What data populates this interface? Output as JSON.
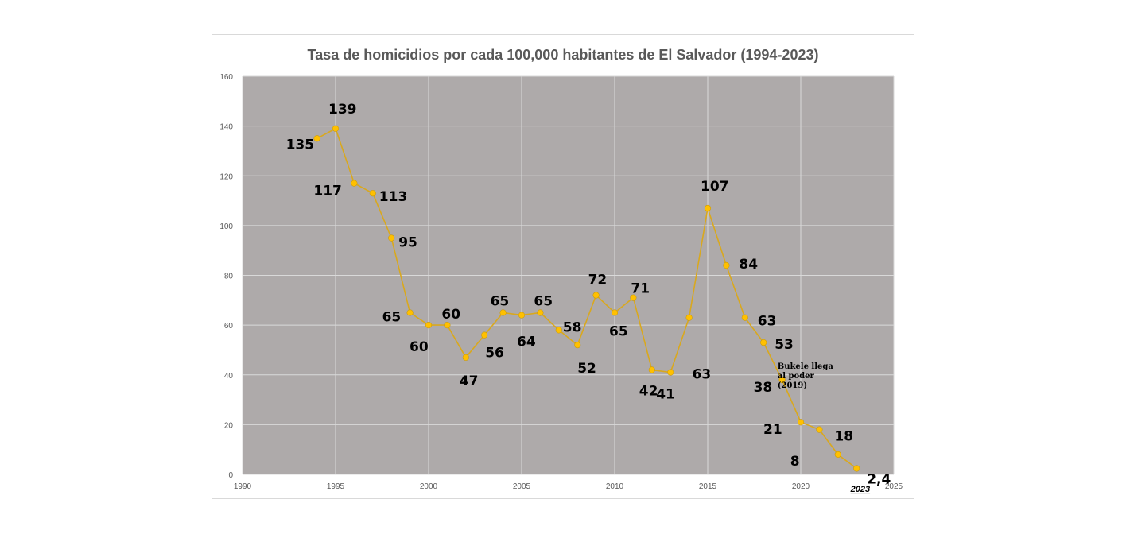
{
  "chart_data": {
    "type": "line",
    "title": "Tasa de homicidios  por cada 100,000 habitantes  de El Salvador  (1994-2023)",
    "xlabel": "",
    "ylabel": "",
    "xlim": [
      1990,
      2025
    ],
    "ylim": [
      0,
      160
    ],
    "x_ticks": [
      1990,
      1995,
      2000,
      2005,
      2010,
      2015,
      2020,
      2025
    ],
    "y_ticks": [
      0,
      20,
      40,
      60,
      80,
      100,
      120,
      140,
      160
    ],
    "grid": true,
    "colors": {
      "plot_background": "#aeaaaa",
      "gridline": "#d9d9d9",
      "line": "#d9a81e",
      "marker": "#ffc000"
    },
    "series": [
      {
        "x": [
          1994,
          1995,
          1996,
          1997,
          1998,
          1999,
          2000,
          2001,
          2002,
          2003,
          2004,
          2005,
          2006,
          2007,
          2008,
          2009,
          2010,
          2011,
          2012,
          2013,
          2014,
          2015,
          2016,
          2017,
          2018,
          2019,
          2020,
          2021,
          2022,
          2023
        ],
        "y": [
          135,
          139,
          117,
          113,
          95,
          65,
          60,
          60,
          47,
          56,
          65,
          64,
          65,
          58,
          52,
          72,
          65,
          71,
          42,
          41,
          63,
          107,
          84,
          63,
          53,
          38,
          21,
          18,
          8,
          2.4
        ],
        "labels": [
          "135",
          "139",
          "117",
          "113",
          "95",
          "65",
          "60",
          "60",
          "47",
          "56",
          "65",
          "64",
          "65",
          "58",
          "52",
          "72",
          "65",
          "71",
          "42",
          "41",
          "63",
          "107",
          "84",
          "63",
          "53",
          "38",
          "21",
          "18",
          "8",
          "2,4"
        ]
      }
    ],
    "annotations": [
      {
        "lines": [
          "Bukele llega",
          "al poder",
          "(2019)"
        ]
      },
      {
        "text": "2023"
      }
    ]
  }
}
